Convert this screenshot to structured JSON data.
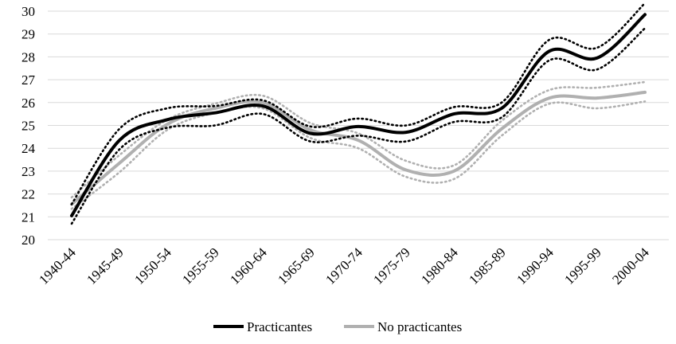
{
  "chart_data": {
    "type": "line",
    "categories": [
      "1940-44",
      "1945-49",
      "1950-54",
      "1955-59",
      "1960-64",
      "1965-69",
      "1970-74",
      "1975-79",
      "1980-84",
      "1985-89",
      "1990-94",
      "1995-99",
      "2000-04"
    ],
    "ylim": [
      20,
      30
    ],
    "yticks": [
      20,
      21,
      22,
      23,
      24,
      25,
      26,
      27,
      28,
      29,
      30
    ],
    "grid": true,
    "legend_position": "bottom",
    "series": [
      {
        "name": "Practicantes",
        "color": "#000000",
        "values": [
          21.05,
          24.35,
          25.25,
          25.55,
          25.85,
          24.65,
          24.95,
          24.7,
          25.5,
          25.75,
          28.25,
          27.95,
          29.85
        ],
        "ci_upper": [
          21.55,
          24.85,
          25.75,
          25.85,
          26.1,
          24.95,
          25.3,
          25.0,
          25.8,
          26.0,
          28.75,
          28.4,
          30.35
        ],
        "ci_lower": [
          20.7,
          23.95,
          24.9,
          25.0,
          25.5,
          24.3,
          24.55,
          24.3,
          25.15,
          25.35,
          27.85,
          27.45,
          29.25
        ]
      },
      {
        "name": "No practicantes",
        "color": "#b0b0b0",
        "values": [
          21.55,
          23.35,
          25.05,
          25.75,
          26.0,
          24.8,
          24.35,
          23.05,
          23.0,
          24.85,
          26.2,
          26.2,
          26.45
        ],
        "ci_upper": [
          21.85,
          23.7,
          25.25,
          25.95,
          26.3,
          25.1,
          24.65,
          23.45,
          23.25,
          25.2,
          26.55,
          26.65,
          26.9
        ],
        "ci_lower": [
          21.35,
          22.95,
          24.8,
          25.55,
          25.75,
          24.45,
          24.0,
          22.75,
          22.65,
          24.55,
          25.95,
          25.75,
          26.05
        ]
      }
    ]
  }
}
